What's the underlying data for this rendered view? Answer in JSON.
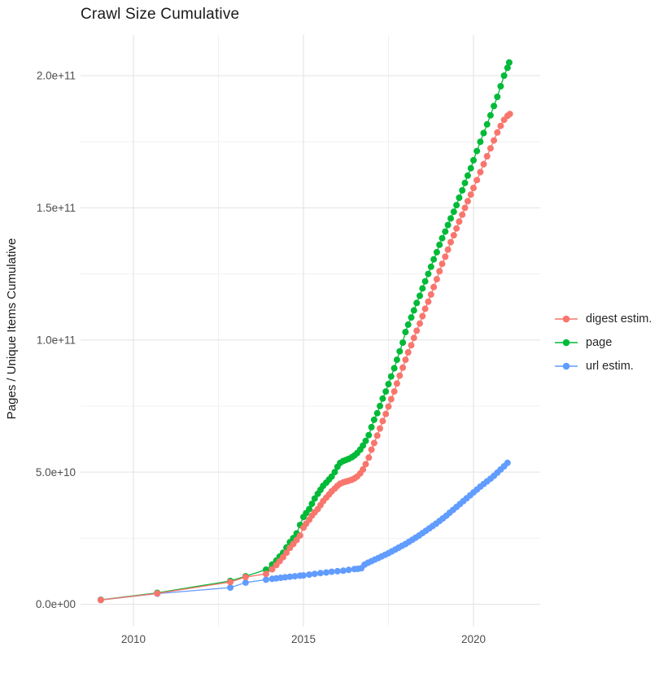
{
  "page": {
    "background": "#ffffff",
    "text_color": "#1a1a1a",
    "tick_color": "#4d4d4d"
  },
  "chart_data": {
    "type": "line",
    "title": "Crawl Size Cumulative",
    "xlabel": "",
    "ylabel": "Pages / Unique Items Cumulative",
    "x_unit": "decimal year",
    "value_unit": "1e9 (billions); multiply listed values by 1e9",
    "legend_position": "right",
    "grid": "major and minor gridlines, light gray on white panel",
    "x_axis": {
      "range": [
        2008.45,
        2021.7
      ],
      "major_ticks": [
        {
          "value": 2010,
          "label": "2010"
        },
        {
          "value": 2015,
          "label": "2015"
        },
        {
          "value": 2020,
          "label": "2020"
        }
      ],
      "minor_ticks": [
        2012.5,
        2017.5
      ]
    },
    "y_axis": {
      "title": "Pages / Unique Items Cumulative",
      "range_billions": [
        -8,
        215.5
      ],
      "major_ticks": [
        {
          "value": 0,
          "label": "0.0e+00"
        },
        {
          "value": 50,
          "label": "5.0e+10"
        },
        {
          "value": 100,
          "label": "1.0e+11"
        },
        {
          "value": 150,
          "label": "1.5e+11"
        },
        {
          "value": 200,
          "label": "2.0e+11"
        }
      ],
      "minor_ticks": [
        25,
        75,
        125,
        175
      ]
    },
    "grid_colors": {
      "major": "#e3e3e3",
      "minor": "#f0f0f0"
    },
    "series": [
      {
        "name": "digest estim.",
        "color": "#F8766D",
        "points": [
          [
            2009.04,
            1.6
          ],
          [
            2010.7,
            4.1
          ],
          [
            2012.85,
            8.4
          ],
          [
            2013.3,
            10.3
          ],
          [
            2013.9,
            11.5
          ],
          [
            2014.08,
            13.2
          ],
          [
            2014.2,
            14.8
          ],
          [
            2014.3,
            16.3
          ],
          [
            2014.4,
            17.8
          ],
          [
            2014.5,
            19.5
          ],
          [
            2014.6,
            21.3
          ],
          [
            2014.7,
            22.8
          ],
          [
            2014.8,
            24.3
          ],
          [
            2014.9,
            26.0
          ],
          [
            2015.0,
            29.0
          ],
          [
            2015.08,
            30.5
          ],
          [
            2015.17,
            32.0
          ],
          [
            2015.25,
            33.5
          ],
          [
            2015.33,
            34.8
          ],
          [
            2015.42,
            36.0
          ],
          [
            2015.5,
            37.5
          ],
          [
            2015.58,
            39.0
          ],
          [
            2015.67,
            40.3
          ],
          [
            2015.75,
            41.5
          ],
          [
            2015.83,
            42.7
          ],
          [
            2015.92,
            43.8
          ],
          [
            2016.0,
            44.8
          ],
          [
            2016.08,
            45.6
          ],
          [
            2016.17,
            46.1
          ],
          [
            2016.25,
            46.4
          ],
          [
            2016.33,
            46.7
          ],
          [
            2016.42,
            47.1
          ],
          [
            2016.5,
            47.6
          ],
          [
            2016.58,
            48.3
          ],
          [
            2016.67,
            49.5
          ],
          [
            2016.75,
            51.0
          ],
          [
            2016.83,
            53.0
          ],
          [
            2016.92,
            55.5
          ],
          [
            2017.0,
            58.5
          ],
          [
            2017.08,
            61.0
          ],
          [
            2017.17,
            63.8
          ],
          [
            2017.25,
            66.5
          ],
          [
            2017.33,
            69.3
          ],
          [
            2017.42,
            72.0
          ],
          [
            2017.5,
            74.8
          ],
          [
            2017.58,
            77.6
          ],
          [
            2017.67,
            80.5
          ],
          [
            2017.75,
            83.5
          ],
          [
            2017.83,
            86.5
          ],
          [
            2017.92,
            89.5
          ],
          [
            2018.0,
            92.5
          ],
          [
            2018.08,
            95.3
          ],
          [
            2018.17,
            98.0
          ],
          [
            2018.25,
            100.8
          ],
          [
            2018.33,
            103.5
          ],
          [
            2018.42,
            106.2
          ],
          [
            2018.5,
            109.0
          ],
          [
            2018.58,
            111.8
          ],
          [
            2018.67,
            114.5
          ],
          [
            2018.75,
            117.2
          ],
          [
            2018.83,
            120.0
          ],
          [
            2018.92,
            123.0
          ],
          [
            2019.0,
            126.0
          ],
          [
            2019.08,
            128.8
          ],
          [
            2019.17,
            131.5
          ],
          [
            2019.25,
            134.2
          ],
          [
            2019.33,
            137.0
          ],
          [
            2019.42,
            139.6
          ],
          [
            2019.5,
            142.2
          ],
          [
            2019.58,
            144.8
          ],
          [
            2019.67,
            147.4
          ],
          [
            2019.75,
            150.0
          ],
          [
            2019.83,
            152.5
          ],
          [
            2019.92,
            155.0
          ],
          [
            2020.0,
            157.5
          ],
          [
            2020.1,
            160.5
          ],
          [
            2020.2,
            163.5
          ],
          [
            2020.3,
            166.5
          ],
          [
            2020.4,
            169.5
          ],
          [
            2020.5,
            172.5
          ],
          [
            2020.6,
            175.5
          ],
          [
            2020.7,
            178.5
          ],
          [
            2020.8,
            181.0
          ],
          [
            2020.9,
            183.3
          ],
          [
            2021.0,
            184.8
          ],
          [
            2021.07,
            185.5
          ]
        ]
      },
      {
        "name": "page",
        "color": "#00BA38",
        "points": [
          [
            2009.04,
            1.7
          ],
          [
            2010.7,
            4.3
          ],
          [
            2012.85,
            8.8
          ],
          [
            2013.3,
            10.6
          ],
          [
            2013.9,
            13.1
          ],
          [
            2014.08,
            15.0
          ],
          [
            2014.2,
            16.5
          ],
          [
            2014.3,
            18.0
          ],
          [
            2014.4,
            19.5
          ],
          [
            2014.5,
            21.5
          ],
          [
            2014.6,
            23.5
          ],
          [
            2014.7,
            25.0
          ],
          [
            2014.8,
            26.8
          ],
          [
            2014.9,
            30.0
          ],
          [
            2015.0,
            33.0
          ],
          [
            2015.08,
            34.5
          ],
          [
            2015.17,
            36.0
          ],
          [
            2015.25,
            38.0
          ],
          [
            2015.33,
            40.0
          ],
          [
            2015.42,
            41.8
          ],
          [
            2015.5,
            43.3
          ],
          [
            2015.58,
            44.8
          ],
          [
            2015.67,
            46.0
          ],
          [
            2015.75,
            47.2
          ],
          [
            2015.83,
            48.3
          ],
          [
            2015.92,
            50.0
          ],
          [
            2016.0,
            52.0
          ],
          [
            2016.08,
            53.5
          ],
          [
            2016.17,
            54.2
          ],
          [
            2016.25,
            54.6
          ],
          [
            2016.33,
            55.0
          ],
          [
            2016.42,
            55.6
          ],
          [
            2016.5,
            56.3
          ],
          [
            2016.58,
            57.2
          ],
          [
            2016.67,
            58.5
          ],
          [
            2016.75,
            60.0
          ],
          [
            2016.83,
            61.8
          ],
          [
            2016.92,
            64.0
          ],
          [
            2017.0,
            67.0
          ],
          [
            2017.08,
            69.8
          ],
          [
            2017.17,
            72.3
          ],
          [
            2017.25,
            75.0
          ],
          [
            2017.33,
            77.8
          ],
          [
            2017.42,
            80.5
          ],
          [
            2017.5,
            83.3
          ],
          [
            2017.58,
            86.2
          ],
          [
            2017.67,
            89.3
          ],
          [
            2017.75,
            92.5
          ],
          [
            2017.83,
            95.7
          ],
          [
            2017.92,
            99.0
          ],
          [
            2018.0,
            103.0
          ],
          [
            2018.08,
            105.8
          ],
          [
            2018.17,
            108.5
          ],
          [
            2018.25,
            111.2
          ],
          [
            2018.33,
            114.0
          ],
          [
            2018.42,
            116.7
          ],
          [
            2018.5,
            119.5
          ],
          [
            2018.58,
            122.2
          ],
          [
            2018.67,
            125.0
          ],
          [
            2018.75,
            127.7
          ],
          [
            2018.83,
            130.5
          ],
          [
            2018.92,
            133.2
          ],
          [
            2019.0,
            136.0
          ],
          [
            2019.08,
            138.5
          ],
          [
            2019.17,
            141.0
          ],
          [
            2019.25,
            143.5
          ],
          [
            2019.33,
            146.0
          ],
          [
            2019.42,
            148.5
          ],
          [
            2019.5,
            151.0
          ],
          [
            2019.58,
            153.8
          ],
          [
            2019.67,
            156.6
          ],
          [
            2019.75,
            159.4
          ],
          [
            2019.83,
            162.2
          ],
          [
            2019.92,
            165.0
          ],
          [
            2020.0,
            168.0
          ],
          [
            2020.1,
            171.5
          ],
          [
            2020.2,
            175.0
          ],
          [
            2020.3,
            178.3
          ],
          [
            2020.4,
            181.6
          ],
          [
            2020.5,
            185.0
          ],
          [
            2020.6,
            188.5
          ],
          [
            2020.7,
            192.0
          ],
          [
            2020.8,
            196.0
          ],
          [
            2020.9,
            200.0
          ],
          [
            2021.0,
            203.0
          ],
          [
            2021.05,
            205.0
          ]
        ]
      },
      {
        "name": "url estim.",
        "color": "#619CFF",
        "points": [
          [
            2009.04,
            1.6
          ],
          [
            2010.7,
            4.0
          ],
          [
            2012.85,
            6.3
          ],
          [
            2013.3,
            8.2
          ],
          [
            2013.9,
            9.3
          ],
          [
            2014.08,
            9.6
          ],
          [
            2014.2,
            9.8
          ],
          [
            2014.33,
            10.0
          ],
          [
            2014.46,
            10.2
          ],
          [
            2014.6,
            10.4
          ],
          [
            2014.75,
            10.6
          ],
          [
            2014.9,
            10.8
          ],
          [
            2015.0,
            10.9
          ],
          [
            2015.17,
            11.2
          ],
          [
            2015.33,
            11.5
          ],
          [
            2015.5,
            11.8
          ],
          [
            2015.67,
            12.0
          ],
          [
            2015.83,
            12.3
          ],
          [
            2016.0,
            12.5
          ],
          [
            2016.17,
            12.7
          ],
          [
            2016.33,
            13.0
          ],
          [
            2016.5,
            13.3
          ],
          [
            2016.6,
            13.4
          ],
          [
            2016.7,
            13.6
          ],
          [
            2016.8,
            15.0
          ],
          [
            2016.9,
            15.7
          ],
          [
            2017.0,
            16.3
          ],
          [
            2017.1,
            16.9
          ],
          [
            2017.2,
            17.5
          ],
          [
            2017.3,
            18.1
          ],
          [
            2017.4,
            18.7
          ],
          [
            2017.5,
            19.3
          ],
          [
            2017.6,
            20.0
          ],
          [
            2017.7,
            20.7
          ],
          [
            2017.8,
            21.4
          ],
          [
            2017.9,
            22.1
          ],
          [
            2018.0,
            22.8
          ],
          [
            2018.1,
            23.6
          ],
          [
            2018.2,
            24.4
          ],
          [
            2018.3,
            25.2
          ],
          [
            2018.4,
            26.0
          ],
          [
            2018.5,
            26.9
          ],
          [
            2018.6,
            27.8
          ],
          [
            2018.7,
            28.7
          ],
          [
            2018.8,
            29.6
          ],
          [
            2018.9,
            30.5
          ],
          [
            2019.0,
            31.5
          ],
          [
            2019.1,
            32.5
          ],
          [
            2019.2,
            33.5
          ],
          [
            2019.3,
            34.6
          ],
          [
            2019.4,
            35.7
          ],
          [
            2019.5,
            36.8
          ],
          [
            2019.6,
            37.9
          ],
          [
            2019.7,
            39.0
          ],
          [
            2019.8,
            40.1
          ],
          [
            2019.9,
            41.2
          ],
          [
            2020.0,
            42.3
          ],
          [
            2020.1,
            43.4
          ],
          [
            2020.2,
            44.5
          ],
          [
            2020.3,
            45.5
          ],
          [
            2020.4,
            46.5
          ],
          [
            2020.5,
            47.5
          ],
          [
            2020.6,
            48.6
          ],
          [
            2020.7,
            49.8
          ],
          [
            2020.8,
            51.0
          ],
          [
            2020.9,
            52.2
          ],
          [
            2021.0,
            53.5
          ]
        ]
      }
    ]
  }
}
